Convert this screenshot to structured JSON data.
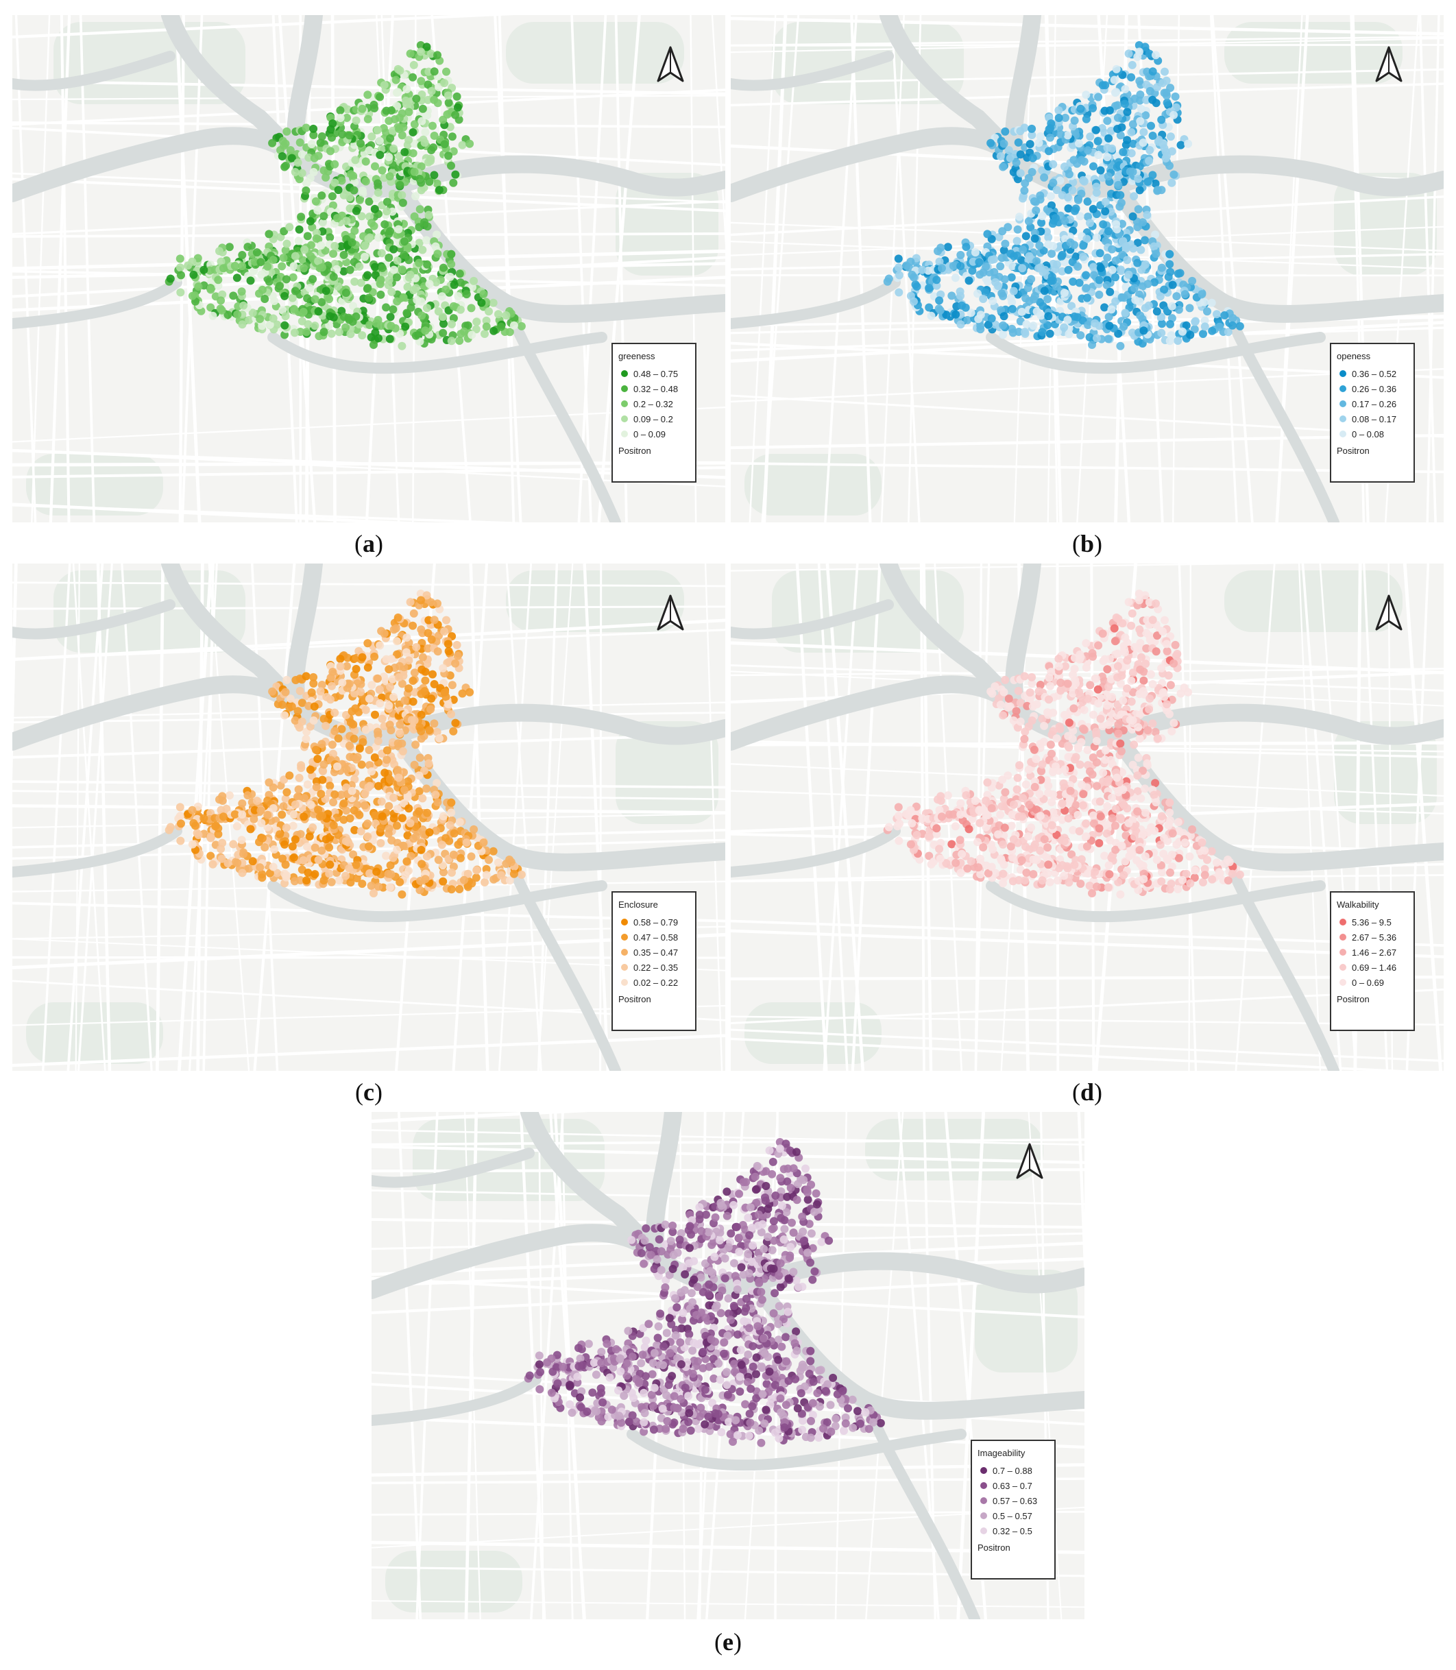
{
  "panels": [
    {
      "id": "a",
      "caption_letter": "a",
      "legend_title": "greeness",
      "legend_items": [
        "0.48 – 0.75",
        "0.32 – 0.48",
        "0.2 – 0.32",
        "0.09 – 0.2",
        "0 – 0.09"
      ],
      "colors": [
        "#1f9a1f",
        "#4bb33f",
        "#7ccc6c",
        "#b0e0a4",
        "#e2f2de"
      ],
      "legend_source": "Positron"
    },
    {
      "id": "b",
      "caption_letter": "b",
      "legend_title": "openess",
      "legend_items": [
        "0.36 – 0.52",
        "0.26 – 0.36",
        "0.17 – 0.26",
        "0.08 – 0.17",
        "0 – 0.08"
      ],
      "colors": [
        "#0a8cc8",
        "#2fa2d6",
        "#62b8e0",
        "#9fd3ec",
        "#d7ebf4"
      ],
      "legend_source": "Positron"
    },
    {
      "id": "c",
      "caption_letter": "c",
      "legend_title": "Enclosure",
      "legend_items": [
        "0.58 – 0.79",
        "0.47 – 0.58",
        "0.35 – 0.47",
        "0.22 – 0.35",
        "0.02 – 0.22"
      ],
      "colors": [
        "#f08a00",
        "#f39c2c",
        "#f5b166",
        "#f8caa0",
        "#f9e0cc"
      ],
      "legend_source": "Positron"
    },
    {
      "id": "d",
      "caption_letter": "d",
      "legend_title": "Walkability",
      "legend_items": [
        "5.36 – 9.5",
        "2.67 – 5.36",
        "1.46 – 2.67",
        "0.69 – 1.46",
        "0 – 0.69"
      ],
      "colors": [
        "#ee6e6e",
        "#f29090",
        "#f5afaf",
        "#f8cbcb",
        "#fae3e3"
      ],
      "legend_source": "Positron"
    },
    {
      "id": "e",
      "caption_letter": "e",
      "legend_title": "Imageability",
      "legend_items": [
        "0.7 – 0.88",
        "0.63 – 0.7",
        "0.57 – 0.63",
        "0.5 – 0.57",
        "0.32 – 0.5"
      ],
      "colors": [
        "#6b2e6e",
        "#8a4f8c",
        "#a878a8",
        "#c6a7c6",
        "#e6d3e4"
      ],
      "legend_source": "Positron"
    }
  ],
  "map_style": {
    "background": "#f4f4f2",
    "river": "#d7dcdc",
    "road": "#ffffff",
    "park": "#e6ece6"
  }
}
